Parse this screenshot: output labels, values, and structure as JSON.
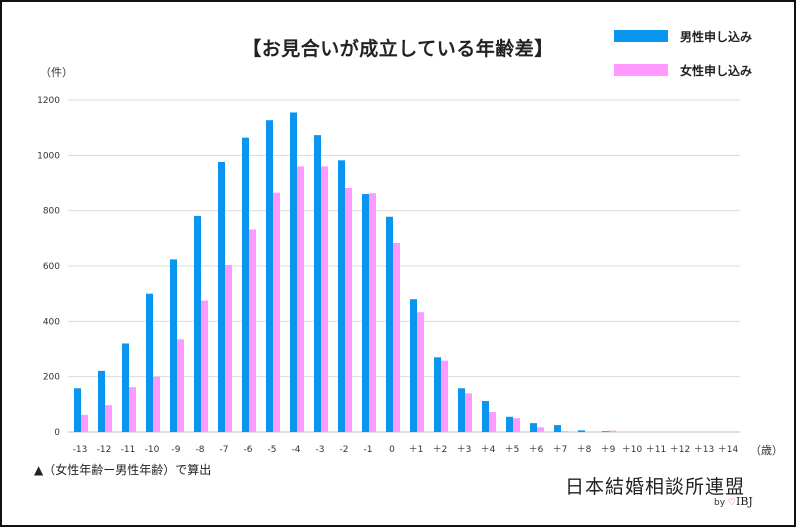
{
  "chart_data": {
    "type": "bar",
    "title": "【お見合いが成立している年齢差】",
    "ylabel": "（件）",
    "xlabel": "（歳）",
    "ylim": [
      0,
      1200
    ],
    "yticks": [
      0,
      200,
      400,
      600,
      800,
      1000,
      1200
    ],
    "grid": true,
    "legend_position": "top-right",
    "categories": [
      "-13",
      "-12",
      "-11",
      "-10",
      "-9",
      "-8",
      "-7",
      "-6",
      "-5",
      "-4",
      "-3",
      "-2",
      "-1",
      "0",
      "＋1",
      "＋2",
      "＋3",
      "＋4",
      "＋5",
      "＋6",
      "＋7",
      "＋8",
      "＋9",
      "＋10",
      "＋11",
      "＋12",
      "＋13",
      "＋14"
    ],
    "series": [
      {
        "name": "男性申し込み",
        "color": "#0a96f0",
        "values": [
          158,
          221,
          320,
          500,
          624,
          781,
          976,
          1064,
          1127,
          1155,
          1073,
          982,
          860,
          778,
          480,
          270,
          158,
          112,
          55,
          32,
          25,
          6,
          3,
          0,
          0,
          0,
          0,
          0
        ]
      },
      {
        "name": "女性申し込み",
        "color": "#ff99ff",
        "values": [
          62,
          97,
          162,
          200,
          335,
          475,
          604,
          732,
          865,
          960,
          960,
          882,
          863,
          683,
          433,
          258,
          140,
          72,
          50,
          17,
          3,
          0,
          5,
          0,
          0,
          0,
          0,
          0
        ]
      }
    ]
  },
  "note": "▲（女性年齢ー男性年齢）で算出",
  "brand": {
    "name": "日本結婚相談所連盟",
    "by": "by",
    "heart": "♡",
    "logo": "IBJ"
  }
}
